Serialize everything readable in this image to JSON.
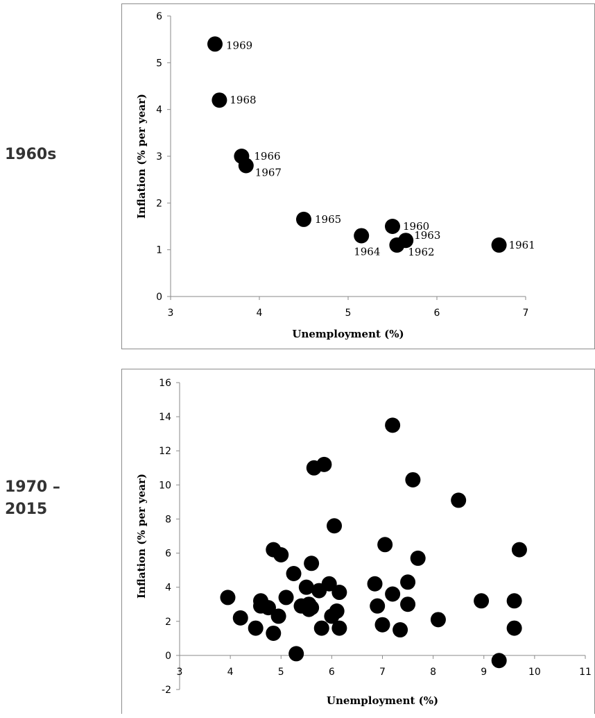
{
  "labels": {
    "top": "1960s",
    "bottom_line1": "1970 –",
    "bottom_line2": "2015"
  },
  "chart_data": [
    {
      "type": "scatter",
      "title": "",
      "xlabel": "Unemployment (%)",
      "ylabel": "Inflation (% per year)",
      "xlim": [
        3,
        7
      ],
      "ylim": [
        0,
        6
      ],
      "xticks": [
        3,
        4,
        5,
        6,
        7
      ],
      "yticks": [
        0,
        1,
        2,
        3,
        4,
        5,
        6
      ],
      "grid": false,
      "marker_color": "#000000",
      "points": [
        {
          "x": 5.5,
          "y": 1.5,
          "label": "1960"
        },
        {
          "x": 6.7,
          "y": 1.1,
          "label": "1961"
        },
        {
          "x": 5.55,
          "y": 1.1,
          "label": "1962"
        },
        {
          "x": 5.65,
          "y": 1.2,
          "label": "1963"
        },
        {
          "x": 5.15,
          "y": 1.3,
          "label": "1964"
        },
        {
          "x": 4.5,
          "y": 1.65,
          "label": "1965"
        },
        {
          "x": 3.8,
          "y": 3.0,
          "label": "1966"
        },
        {
          "x": 3.85,
          "y": 2.8,
          "label": "1967"
        },
        {
          "x": 3.55,
          "y": 4.2,
          "label": "1968"
        },
        {
          "x": 3.5,
          "y": 5.4,
          "label": "1969"
        }
      ]
    },
    {
      "type": "scatter",
      "title": "",
      "xlabel": "Unemployment (%)",
      "ylabel": "Inflation (% per year)",
      "xlim": [
        3,
        11
      ],
      "ylim": [
        -2,
        16
      ],
      "xticks": [
        3,
        4,
        5,
        6,
        7,
        8,
        9,
        10,
        11
      ],
      "yticks": [
        -2,
        0,
        2,
        4,
        6,
        8,
        10,
        12,
        14,
        16
      ],
      "grid": false,
      "marker_color": "#000000",
      "points": [
        {
          "x": 3.95,
          "y": 3.4
        },
        {
          "x": 4.2,
          "y": 2.2
        },
        {
          "x": 4.5,
          "y": 1.6
        },
        {
          "x": 4.6,
          "y": 3.2
        },
        {
          "x": 4.6,
          "y": 2.9
        },
        {
          "x": 4.75,
          "y": 2.8
        },
        {
          "x": 4.85,
          "y": 6.2
        },
        {
          "x": 4.85,
          "y": 1.3
        },
        {
          "x": 4.95,
          "y": 2.3
        },
        {
          "x": 5.0,
          "y": 5.9
        },
        {
          "x": 5.1,
          "y": 3.4
        },
        {
          "x": 5.25,
          "y": 4.8
        },
        {
          "x": 5.3,
          "y": 0.1
        },
        {
          "x": 5.4,
          "y": 2.9
        },
        {
          "x": 5.5,
          "y": 4.0
        },
        {
          "x": 5.55,
          "y": 3.0
        },
        {
          "x": 5.55,
          "y": 2.7
        },
        {
          "x": 5.6,
          "y": 2.8
        },
        {
          "x": 5.6,
          "y": 5.4
        },
        {
          "x": 5.65,
          "y": 11.0
        },
        {
          "x": 5.75,
          "y": 3.8
        },
        {
          "x": 5.8,
          "y": 1.6
        },
        {
          "x": 5.85,
          "y": 11.2
        },
        {
          "x": 5.95,
          "y": 4.2
        },
        {
          "x": 6.0,
          "y": 2.3
        },
        {
          "x": 6.05,
          "y": 7.6
        },
        {
          "x": 6.1,
          "y": 2.6
        },
        {
          "x": 6.15,
          "y": 3.7
        },
        {
          "x": 6.15,
          "y": 1.6
        },
        {
          "x": 6.85,
          "y": 4.2
        },
        {
          "x": 6.9,
          "y": 2.9
        },
        {
          "x": 7.0,
          "y": 1.8
        },
        {
          "x": 7.05,
          "y": 6.5
        },
        {
          "x": 7.2,
          "y": 13.5
        },
        {
          "x": 7.2,
          "y": 3.6
        },
        {
          "x": 7.35,
          "y": 1.5
        },
        {
          "x": 7.5,
          "y": 4.3
        },
        {
          "x": 7.5,
          "y": 3.0
        },
        {
          "x": 7.6,
          "y": 10.3
        },
        {
          "x": 7.7,
          "y": 5.7
        },
        {
          "x": 8.1,
          "y": 2.1
        },
        {
          "x": 8.5,
          "y": 9.1
        },
        {
          "x": 8.95,
          "y": 3.2
        },
        {
          "x": 9.3,
          "y": -0.3
        },
        {
          "x": 9.6,
          "y": 3.2
        },
        {
          "x": 9.6,
          "y": 1.6
        },
        {
          "x": 9.7,
          "y": 6.2
        }
      ]
    }
  ]
}
